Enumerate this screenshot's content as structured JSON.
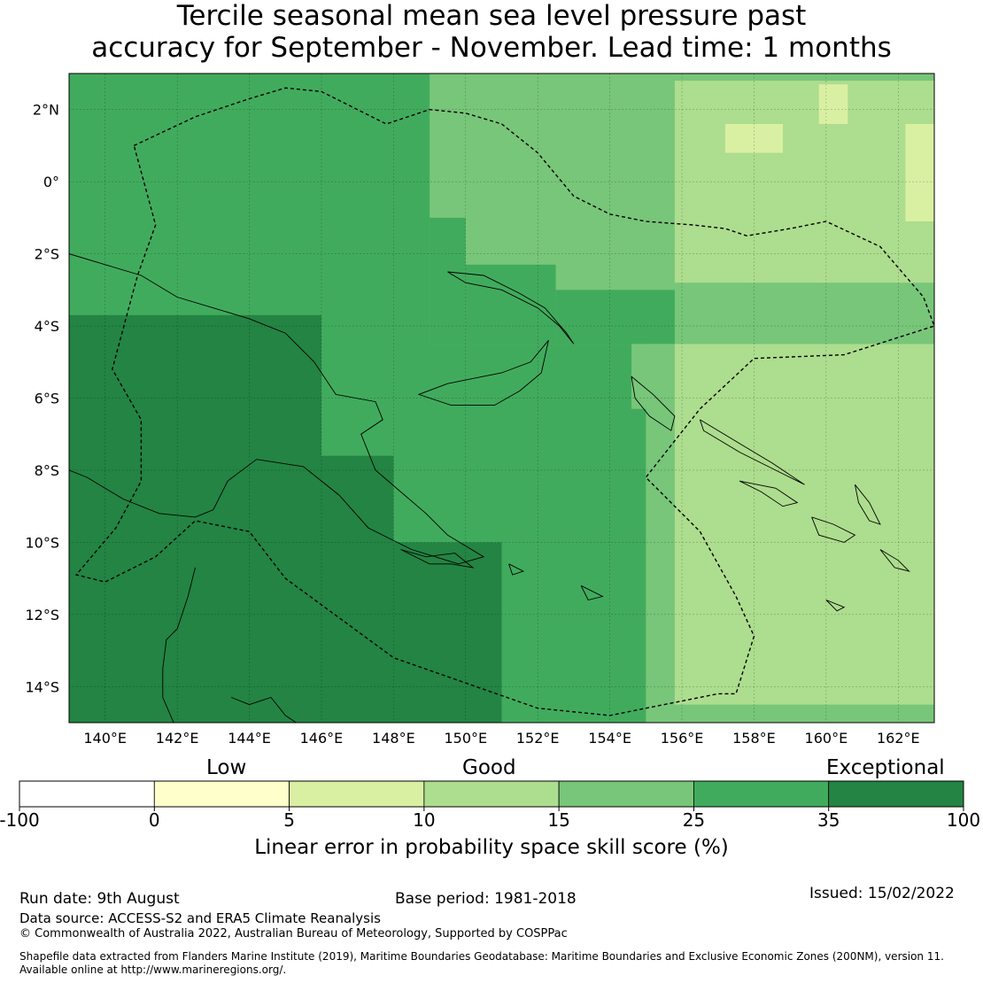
{
  "title": {
    "line1": "Tercile seasonal mean sea level pressure past",
    "line2": "accuracy for September - November. Lead time: 1 months"
  },
  "map": {
    "lon_range": [
      139,
      163
    ],
    "lat_range": [
      -15,
      3
    ],
    "lon_ticks": [
      {
        "value": 140,
        "label": "140°E"
      },
      {
        "value": 142,
        "label": "142°E"
      },
      {
        "value": 144,
        "label": "144°E"
      },
      {
        "value": 146,
        "label": "146°E"
      },
      {
        "value": 148,
        "label": "148°E"
      },
      {
        "value": 150,
        "label": "150°E"
      },
      {
        "value": 152,
        "label": "152°E"
      },
      {
        "value": 154,
        "label": "154°E"
      },
      {
        "value": 156,
        "label": "156°E"
      },
      {
        "value": 158,
        "label": "158°E"
      },
      {
        "value": 160,
        "label": "160°E"
      },
      {
        "value": 162,
        "label": "162°E"
      }
    ],
    "lat_ticks": [
      {
        "value": 2,
        "label": "2°N"
      },
      {
        "value": 0,
        "label": "0°"
      },
      {
        "value": -2,
        "label": "2°S"
      },
      {
        "value": -4,
        "label": "4°S"
      },
      {
        "value": -6,
        "label": "6°S"
      },
      {
        "value": -8,
        "label": "8°S"
      },
      {
        "value": -10,
        "label": "10°S"
      },
      {
        "value": -12,
        "label": "12°S"
      },
      {
        "value": -14,
        "label": "14°S"
      }
    ],
    "skill_regions": [
      {
        "category": "15-25",
        "lon": [
          149.0,
          163.0
        ],
        "lat": [
          -4.5,
          3.0
        ]
      },
      {
        "category": "10-15",
        "lon": [
          155.8,
          163.0
        ],
        "lat": [
          -2.8,
          2.8
        ]
      },
      {
        "category": "5-10",
        "lon": [
          157.2,
          158.8
        ],
        "lat": [
          0.8,
          1.6
        ]
      },
      {
        "category": "5-10",
        "lon": [
          159.8,
          160.6
        ],
        "lat": [
          1.6,
          2.7
        ]
      },
      {
        "category": "5-10",
        "lon": [
          162.2,
          163.0
        ],
        "lat": [
          -1.1,
          1.6
        ]
      },
      {
        "category": "25-35",
        "lon": [
          139.0,
          149.0
        ],
        "lat": [
          -4.5,
          3.0
        ]
      },
      {
        "category": "25-35",
        "lon": [
          149.0,
          150.0
        ],
        "lat": [
          -4.5,
          -1.0
        ]
      },
      {
        "category": "25-35",
        "lon": [
          150.0,
          152.5
        ],
        "lat": [
          -4.5,
          -2.3
        ]
      },
      {
        "category": "25-35",
        "lon": [
          152.5,
          155.8
        ],
        "lat": [
          -4.5,
          -3.0
        ]
      },
      {
        "category": "25-35",
        "lon": [
          139.0,
          155.0
        ],
        "lat": [
          -15.0,
          -4.5
        ]
      },
      {
        "category": "15-25",
        "lon": [
          155.0,
          163.0
        ],
        "lat": [
          -15.0,
          -4.5
        ]
      },
      {
        "category": "15-25",
        "lon": [
          154.6,
          156.0
        ],
        "lat": [
          -6.3,
          -4.5
        ]
      },
      {
        "category": "10-15",
        "lon": [
          155.8,
          163.0
        ],
        "lat": [
          -14.5,
          -4.5
        ]
      },
      {
        "category": "35-100",
        "lon": [
          139.0,
          146.0
        ],
        "lat": [
          -15.0,
          -3.7
        ]
      },
      {
        "category": "35-100",
        "lon": [
          146.0,
          148.0
        ],
        "lat": [
          -15.0,
          -7.6
        ]
      },
      {
        "category": "35-100",
        "lon": [
          148.0,
          151.0
        ],
        "lat": [
          -15.0,
          -10.0
        ]
      }
    ],
    "skill_colors": {
      "0-5": "#ffffcc",
      "5-10": "#d9f0a3",
      "10-15": "#addd8e",
      "15-25": "#78c679",
      "25-35": "#41ab5d",
      "35-100": "#238443"
    },
    "eez_boundary": [
      [
        140.8,
        1.0
      ],
      [
        142.5,
        1.8
      ],
      [
        144.0,
        2.3
      ],
      [
        145.0,
        2.6
      ],
      [
        146.0,
        2.5
      ],
      [
        147.8,
        1.6
      ],
      [
        149.0,
        2.0
      ],
      [
        150.0,
        1.9
      ],
      [
        151.0,
        1.6
      ],
      [
        152.0,
        0.8
      ],
      [
        153.0,
        -0.4
      ],
      [
        154.0,
        -0.9
      ],
      [
        155.0,
        -1.1
      ],
      [
        156.3,
        -1.2
      ],
      [
        157.2,
        -1.3
      ],
      [
        157.8,
        -1.5
      ],
      [
        159.0,
        -1.3
      ],
      [
        160.0,
        -1.1
      ],
      [
        161.5,
        -1.8
      ],
      [
        162.7,
        -3.2
      ],
      [
        163.0,
        -4.0
      ],
      [
        160.5,
        -4.8
      ],
      [
        158.0,
        -4.9
      ],
      [
        156.5,
        -6.3
      ],
      [
        155.0,
        -8.2
      ],
      [
        156.5,
        -9.7
      ],
      [
        157.5,
        -11.5
      ],
      [
        158.0,
        -12.6
      ],
      [
        157.5,
        -14.2
      ],
      [
        157.0,
        -14.2
      ],
      [
        154.0,
        -14.8
      ],
      [
        152.0,
        -14.6
      ],
      [
        148.0,
        -13.2
      ],
      [
        145.0,
        -11.0
      ],
      [
        144.0,
        -9.7
      ],
      [
        142.5,
        -9.4
      ],
      [
        141.4,
        -10.4
      ],
      [
        140.0,
        -11.1
      ],
      [
        139.2,
        -10.9
      ],
      [
        140.3,
        -9.6
      ],
      [
        141.0,
        -8.3
      ],
      [
        141.0,
        -6.6
      ],
      [
        140.2,
        -5.2
      ],
      [
        140.9,
        -2.6
      ],
      [
        141.4,
        -1.2
      ],
      [
        140.8,
        1.0
      ]
    ],
    "coastlines": [
      [
        [
          139.0,
          -2.0
        ],
        [
          140.0,
          -2.3
        ],
        [
          141.0,
          -2.6
        ],
        [
          142.0,
          -3.2
        ],
        [
          143.0,
          -3.5
        ],
        [
          144.0,
          -3.8
        ],
        [
          145.0,
          -4.2
        ],
        [
          145.8,
          -5.0
        ],
        [
          146.4,
          -5.9
        ],
        [
          147.5,
          -6.1
        ],
        [
          147.7,
          -6.6
        ],
        [
          147.1,
          -7.0
        ],
        [
          147.5,
          -8.0
        ],
        [
          148.2,
          -8.6
        ],
        [
          148.9,
          -9.2
        ],
        [
          149.5,
          -9.8
        ],
        [
          150.5,
          -10.4
        ],
        [
          149.8,
          -10.6
        ],
        [
          148.5,
          -10.2
        ],
        [
          147.3,
          -9.6
        ],
        [
          146.5,
          -8.7
        ],
        [
          145.5,
          -7.9
        ],
        [
          144.2,
          -7.7
        ],
        [
          143.4,
          -8.3
        ],
        [
          143.0,
          -9.1
        ],
        [
          142.5,
          -9.3
        ],
        [
          141.5,
          -9.2
        ],
        [
          140.5,
          -8.8
        ],
        [
          139.5,
          -8.2
        ],
        [
          139.0,
          -8.0
        ]
      ],
      [
        [
          150.0,
          -5.5
        ],
        [
          151.0,
          -5.3
        ],
        [
          151.8,
          -5.0
        ],
        [
          152.3,
          -4.4
        ],
        [
          152.1,
          -5.3
        ],
        [
          151.5,
          -5.8
        ],
        [
          150.8,
          -6.2
        ],
        [
          149.6,
          -6.2
        ],
        [
          148.7,
          -5.9
        ],
        [
          149.5,
          -5.6
        ],
        [
          150.0,
          -5.5
        ]
      ],
      [
        [
          149.5,
          -2.5
        ],
        [
          150.5,
          -2.6
        ],
        [
          151.5,
          -3.1
        ],
        [
          152.2,
          -3.5
        ],
        [
          152.8,
          -4.2
        ],
        [
          153.0,
          -4.5
        ],
        [
          152.6,
          -4.0
        ],
        [
          152.0,
          -3.5
        ],
        [
          151.0,
          -3.0
        ],
        [
          150.0,
          -2.8
        ],
        [
          149.5,
          -2.5
        ]
      ],
      [
        [
          154.6,
          -5.4
        ],
        [
          155.2,
          -5.9
        ],
        [
          155.8,
          -6.5
        ],
        [
          155.7,
          -6.9
        ],
        [
          155.1,
          -6.5
        ],
        [
          154.7,
          -6.0
        ],
        [
          154.6,
          -5.4
        ]
      ],
      [
        [
          156.5,
          -6.6
        ],
        [
          157.5,
          -7.2
        ],
        [
          158.5,
          -7.8
        ],
        [
          159.4,
          -8.4
        ],
        [
          158.8,
          -8.1
        ],
        [
          157.6,
          -7.5
        ],
        [
          156.6,
          -6.9
        ],
        [
          156.5,
          -6.6
        ]
      ],
      [
        [
          157.6,
          -8.3
        ],
        [
          158.2,
          -8.6
        ],
        [
          158.8,
          -9.0
        ],
        [
          159.2,
          -8.9
        ],
        [
          158.6,
          -8.5
        ],
        [
          157.6,
          -8.3
        ]
      ],
      [
        [
          159.6,
          -9.3
        ],
        [
          160.2,
          -9.5
        ],
        [
          160.8,
          -9.8
        ],
        [
          160.5,
          -10.0
        ],
        [
          159.8,
          -9.8
        ],
        [
          159.6,
          -9.3
        ]
      ],
      [
        [
          160.8,
          -8.4
        ],
        [
          161.2,
          -8.9
        ],
        [
          161.5,
          -9.5
        ],
        [
          161.2,
          -9.4
        ],
        [
          160.9,
          -8.9
        ],
        [
          160.8,
          -8.4
        ]
      ],
      [
        [
          161.5,
          -10.2
        ],
        [
          162.0,
          -10.5
        ],
        [
          162.3,
          -10.8
        ],
        [
          161.9,
          -10.7
        ],
        [
          161.5,
          -10.2
        ]
      ],
      [
        [
          160.0,
          -11.6
        ],
        [
          160.5,
          -11.8
        ],
        [
          160.3,
          -11.9
        ],
        [
          160.0,
          -11.6
        ]
      ],
      [
        [
          153.2,
          -11.2
        ],
        [
          153.8,
          -11.5
        ],
        [
          153.4,
          -11.6
        ],
        [
          153.2,
          -11.2
        ]
      ],
      [
        [
          151.2,
          -10.6
        ],
        [
          151.6,
          -10.8
        ],
        [
          151.3,
          -10.9
        ],
        [
          151.2,
          -10.6
        ]
      ],
      [
        [
          142.5,
          -10.7
        ],
        [
          142.3,
          -11.5
        ],
        [
          142.0,
          -12.4
        ],
        [
          141.7,
          -12.7
        ],
        [
          141.6,
          -13.5
        ],
        [
          141.6,
          -14.3
        ],
        [
          141.9,
          -15.0
        ]
      ],
      [
        [
          143.5,
          -14.3
        ],
        [
          144.0,
          -14.5
        ],
        [
          144.6,
          -14.3
        ],
        [
          145.0,
          -14.8
        ],
        [
          145.3,
          -15.0
        ]
      ],
      [
        [
          148.2,
          -10.2
        ],
        [
          148.9,
          -10.4
        ],
        [
          149.7,
          -10.3
        ],
        [
          150.2,
          -10.7
        ],
        [
          149.6,
          -10.6
        ],
        [
          149.0,
          -10.6
        ],
        [
          148.2,
          -10.2
        ]
      ]
    ],
    "categories": {
      "low": "Low",
      "good": "Good",
      "exceptional": "Exceptional"
    }
  },
  "legend": {
    "segments": [
      {
        "from": -100,
        "to": 0,
        "color": "#ffffff"
      },
      {
        "from": 0,
        "to": 5,
        "color": "#ffffcc"
      },
      {
        "from": 5,
        "to": 10,
        "color": "#d9f0a3"
      },
      {
        "from": 10,
        "to": 15,
        "color": "#addd8e"
      },
      {
        "from": 15,
        "to": 25,
        "color": "#78c679"
      },
      {
        "from": 25,
        "to": 35,
        "color": "#41ab5d"
      },
      {
        "from": 35,
        "to": 100,
        "color": "#238443"
      }
    ],
    "ticks": [
      "-100",
      "0",
      "5",
      "10",
      "15",
      "25",
      "35",
      "100"
    ],
    "title": "Linear error in probability space skill score (%)"
  },
  "footer": {
    "run_date": "Run date: 9th August",
    "base_period": "Base period: 1981-2018",
    "issued": "Issued: 15/02/2022",
    "data_source": "Data source: ACCESS-S2 and ERA5 Climate Reanalysis",
    "copyright": "© Commonwealth of Australia 2022, Australian Bureau of Meteorology, Supported by COSPPac",
    "shapefile_line1": "Shapefile data extracted from Flanders Marine Institute (2019), Maritime Boundaries Geodatabase: Maritime Boundaries and Exclusive Economic Zones (200NM), version 11.",
    "shapefile_line2": "Available online at http://www.marineregions.org/."
  }
}
